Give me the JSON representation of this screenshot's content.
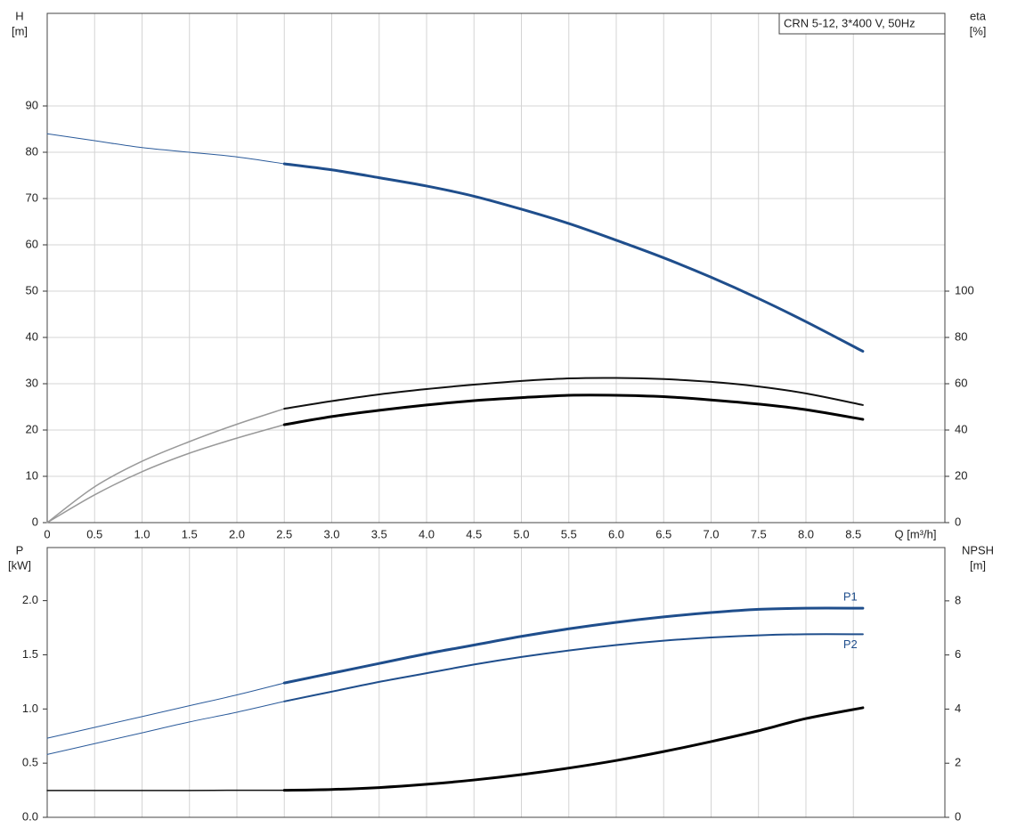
{
  "chart_data": [
    {
      "type": "line",
      "annotation": "CRN 5-12, 3*400 V, 50Hz",
      "ylabel": [
        "H",
        "[m]"
      ],
      "y2label": [
        "eta",
        "[%]"
      ],
      "xlabel": "Q [m³/h]",
      "grid": "both",
      "x": [
        0,
        0.5,
        1,
        1.5,
        2,
        2.5,
        3,
        3.5,
        4,
        4.5,
        5,
        5.5,
        6,
        6.5,
        7,
        7.5,
        8,
        8.6
      ],
      "xlim": [
        0,
        9.465
      ],
      "xticks": [
        0,
        0.5,
        {
          "value": 1,
          "label": "1.0"
        },
        1.5,
        {
          "value": 2,
          "label": "2.0"
        },
        2.5,
        {
          "value": 3,
          "label": "3.0"
        },
        3.5,
        {
          "value": 4,
          "label": "4.0"
        },
        4.5,
        {
          "value": 5,
          "label": "5.0"
        },
        5.5,
        {
          "value": 6,
          "label": "6.0"
        },
        6.5,
        {
          "value": 7,
          "label": "7.0"
        },
        7.5,
        {
          "value": 8,
          "label": "8.0"
        },
        8.5
      ],
      "ylim": [
        0,
        110
      ],
      "yticks": [
        0,
        10,
        20,
        30,
        40,
        50,
        60,
        70,
        80,
        90
      ],
      "y2lim": [
        0,
        220
      ],
      "y2ticks": [
        0,
        20,
        40,
        60,
        80,
        100
      ],
      "series": [
        {
          "color": "#2a5a9a",
          "width": 1,
          "values": [
            84,
            82.5,
            81,
            80,
            79,
            77.5,
            null,
            null,
            null,
            null,
            null,
            null,
            null,
            null,
            null,
            null,
            null,
            null
          ]
        },
        {
          "color": "#1f4e8c",
          "width": 3,
          "values": [
            null,
            null,
            null,
            null,
            null,
            77.5,
            76.2,
            74.5,
            72.7,
            70.5,
            67.7,
            64.6,
            61,
            57.2,
            53,
            48.4,
            43.4,
            37
          ]
        },
        {
          "color": "#999999",
          "width": 1.5,
          "axis": "y2",
          "values": [
            0,
            15.5,
            26.5,
            35,
            42.5,
            49.2,
            null,
            null,
            null,
            null,
            null,
            null,
            null,
            null,
            null,
            null,
            null,
            null
          ]
        },
        {
          "color": "#111111",
          "width": 2,
          "axis": "y2",
          "values": [
            null,
            null,
            null,
            null,
            null,
            49.2,
            52.5,
            55.4,
            57.7,
            59.6,
            61.2,
            62.3,
            62.5,
            62,
            60.8,
            58.8,
            55.8,
            50.8
          ]
        },
        {
          "color": "#999999",
          "width": 1.5,
          "axis": "y2",
          "values": [
            0,
            12,
            22,
            30,
            36.5,
            42.3,
            null,
            null,
            null,
            null,
            null,
            null,
            null,
            null,
            null,
            null,
            null,
            null
          ]
        },
        {
          "color": "#000000",
          "width": 3,
          "axis": "y2",
          "values": [
            null,
            null,
            null,
            null,
            null,
            42.3,
            45.8,
            48.5,
            50.8,
            52.7,
            54,
            55,
            55,
            54.4,
            53,
            51.2,
            48.8,
            44.6
          ]
        }
      ]
    },
    {
      "type": "line",
      "ylabel": [
        "P",
        "[kW]"
      ],
      "y2label": [
        "NPSH",
        "[m]"
      ],
      "grid": "x",
      "x": [
        0,
        0.5,
        1,
        1.5,
        2,
        2.5,
        3,
        3.5,
        4,
        4.5,
        5,
        5.5,
        6,
        6.5,
        7,
        7.5,
        8,
        8.6
      ],
      "xlim": [
        0,
        9.465
      ],
      "ylim": [
        0,
        2.49
      ],
      "yticks": [
        {
          "value": 0,
          "label": "0.0"
        },
        0.5,
        {
          "value": 1,
          "label": "1.0"
        },
        1.5,
        {
          "value": 2,
          "label": "2.0"
        }
      ],
      "y2lim": [
        0,
        9.97
      ],
      "y2ticks": [
        0,
        2,
        4,
        6,
        8
      ],
      "series": [
        {
          "color": "#2a5a9a",
          "width": 1,
          "values": [
            0.73,
            0.83,
            0.93,
            1.03,
            1.13,
            1.24,
            null,
            null,
            null,
            null,
            null,
            null,
            null,
            null,
            null,
            null,
            null,
            null
          ]
        },
        {
          "name": "P1",
          "color": "#1f4e8c",
          "width": 3,
          "values": [
            null,
            null,
            null,
            null,
            null,
            1.24,
            1.33,
            1.42,
            1.51,
            1.59,
            1.67,
            1.74,
            1.8,
            1.85,
            1.89,
            1.92,
            1.93,
            1.93
          ]
        },
        {
          "color": "#2a5a9a",
          "width": 1,
          "values": [
            0.58,
            0.68,
            0.78,
            0.88,
            0.97,
            1.07,
            null,
            null,
            null,
            null,
            null,
            null,
            null,
            null,
            null,
            null,
            null,
            null
          ]
        },
        {
          "name": "P2",
          "color": "#1f4e8c",
          "width": 2,
          "values": [
            null,
            null,
            null,
            null,
            null,
            1.07,
            1.16,
            1.25,
            1.33,
            1.41,
            1.48,
            1.54,
            1.59,
            1.63,
            1.66,
            1.68,
            1.69,
            1.69
          ]
        },
        {
          "color": "#111111",
          "width": 1.5,
          "axis": "y2",
          "values": [
            0.99,
            0.99,
            0.99,
            0.99,
            1.0,
            1.0,
            null,
            null,
            null,
            null,
            null,
            null,
            null,
            null,
            null,
            null,
            null,
            null
          ]
        },
        {
          "color": "#000000",
          "width": 3,
          "axis": "y2",
          "values": [
            null,
            null,
            null,
            null,
            null,
            1.0,
            1.03,
            1.1,
            1.22,
            1.38,
            1.58,
            1.82,
            2.1,
            2.43,
            2.8,
            3.2,
            3.65,
            4.05
          ]
        }
      ]
    }
  ]
}
